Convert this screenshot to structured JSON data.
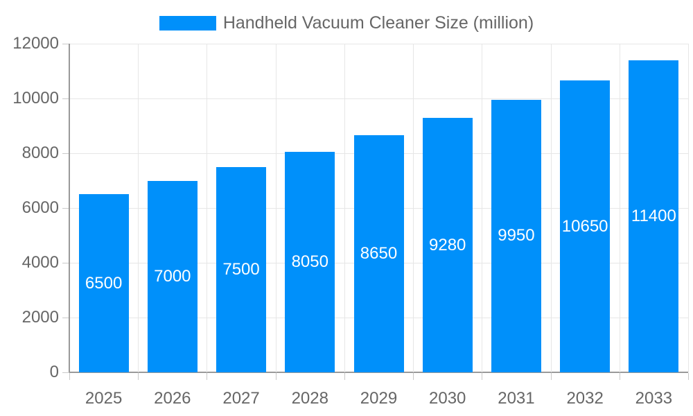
{
  "legend": {
    "label": "Handheld Vacuum Cleaner Size (million)"
  },
  "chart_data": {
    "type": "bar",
    "title": "Handheld Vacuum Cleaner Size (million)",
    "categories": [
      "2025",
      "2026",
      "2027",
      "2028",
      "2029",
      "2030",
      "2031",
      "2032",
      "2033"
    ],
    "series": [
      {
        "name": "Handheld Vacuum Cleaner Size (million)",
        "values": [
          6500,
          7000,
          7500,
          8050,
          8650,
          9280,
          9950,
          10650,
          11400
        ]
      }
    ],
    "value_labels": [
      "6500",
      "7000",
      "7500",
      "8050",
      "8650",
      "9280",
      "9950",
      "10650",
      "11400"
    ],
    "value_label_position": "inside-center",
    "xlabel": "",
    "ylabel": "",
    "ylim": [
      0,
      12000
    ],
    "yticks": [
      0,
      2000,
      4000,
      6000,
      8000,
      10000,
      12000
    ],
    "grid": true,
    "legend_position": "top",
    "colors": {
      "bar": "#0090FA",
      "grid": "#E6E6E6",
      "axis": "#999999",
      "tick_mark": "#C9C9C9",
      "tick_text": "#666666",
      "legend_text": "#666666",
      "bar_label_text": "#FFFFFF",
      "background": "#FFFFFF"
    }
  }
}
